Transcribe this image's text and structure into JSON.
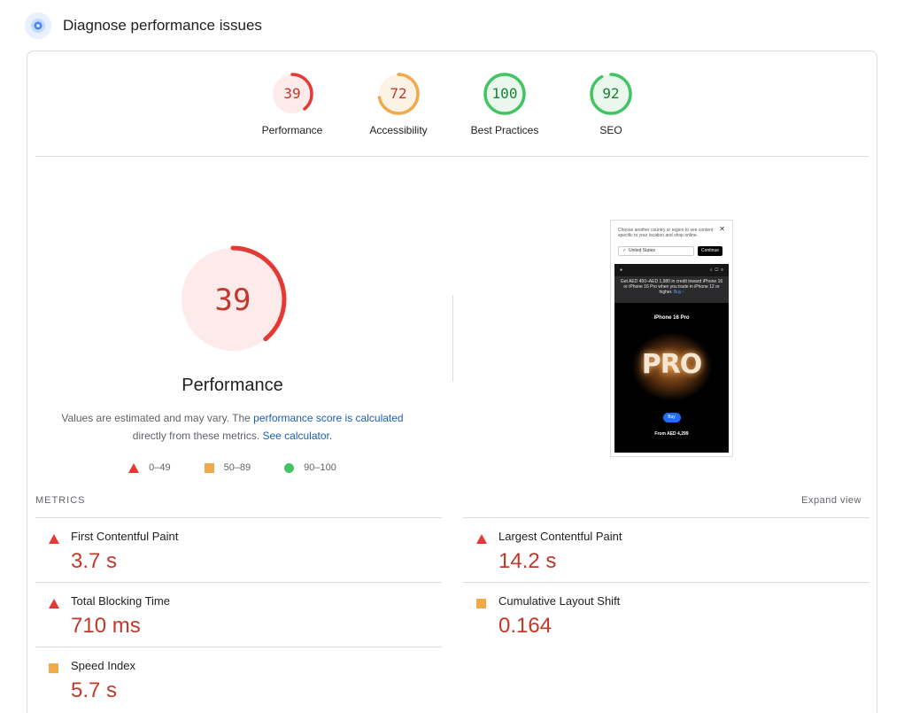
{
  "header": {
    "title": "Diagnose performance issues",
    "icon": "lighthouse-icon"
  },
  "colors": {
    "fail": "#e53935",
    "average": "#f0a94b",
    "pass": "#43c464",
    "fail_text": "#c0392b",
    "average_text": "#c0392b",
    "pass_text": "#188038"
  },
  "categories": [
    {
      "label": "Performance",
      "score": "39",
      "status": "fail"
    },
    {
      "label": "Accessibility",
      "score": "72",
      "status": "average"
    },
    {
      "label": "Best Practices",
      "score": "100",
      "status": "pass"
    },
    {
      "label": "SEO",
      "score": "92",
      "status": "pass"
    }
  ],
  "performance": {
    "score": "39",
    "title": "Performance",
    "desc_part1": "Values are estimated and may vary. The ",
    "desc_link1": "performance score is calculated",
    "desc_part2": " directly from these metrics. ",
    "desc_link2": "See calculator.",
    "legend": [
      {
        "shape": "triangle",
        "range": "0–49"
      },
      {
        "shape": "square",
        "range": "50–89"
      },
      {
        "shape": "circle",
        "range": "90–100"
      }
    ]
  },
  "screenshot": {
    "banner_text": "Choose another country or region to see content specific to your location and shop online.",
    "close": "✕",
    "select_value": "United States",
    "continue_label": "Continue",
    "promo_text": "Get AED 450–AED 1,980 in credit toward iPhone 16 or iPhone 16 Pro when you trade in iPhone 12 or higher.",
    "promo_link": "Buy ›",
    "product": "iPhone 16 Pro",
    "hero_text": "PRO",
    "buy_label": "Buy",
    "price": "From AED 4,299"
  },
  "metrics": {
    "heading": "METRICS",
    "expand_label": "Expand view",
    "items": [
      {
        "name": "First Contentful Paint",
        "value": "3.7 s",
        "status": "fail"
      },
      {
        "name": "Largest Contentful Paint",
        "value": "14.2 s",
        "status": "fail"
      },
      {
        "name": "Total Blocking Time",
        "value": "710 ms",
        "status": "fail"
      },
      {
        "name": "Cumulative Layout Shift",
        "value": "0.164",
        "status": "average"
      },
      {
        "name": "Speed Index",
        "value": "5.7 s",
        "status": "average"
      }
    ]
  }
}
